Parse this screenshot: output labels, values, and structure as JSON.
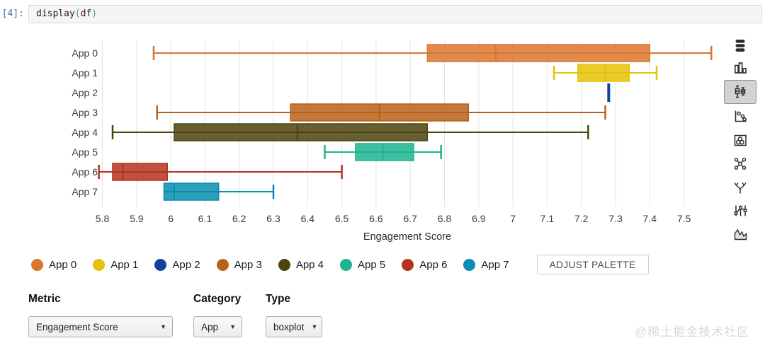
{
  "notebook": {
    "prompt": "[4]:",
    "code_fn": "display",
    "paren_open": "(",
    "code_arg": "df",
    "paren_close": ")"
  },
  "chart_data": {
    "type": "boxplot",
    "orientation": "horizontal",
    "title": "",
    "xlabel": "Engagement Score",
    "categories": [
      "App 0",
      "App 1",
      "App 2",
      "App 3",
      "App 4",
      "App 5",
      "App 6",
      "App 7"
    ],
    "x_tick_values": [
      5.8,
      5.9,
      6,
      6.1,
      6.2,
      6.3,
      6.4,
      6.5,
      6.6,
      6.7,
      6.8,
      6.9,
      7,
      7.1,
      7.2,
      7.3,
      7.4,
      7.5
    ],
    "x_tick_labels": [
      "5.8",
      "5.9",
      "6",
      "6.1",
      "6.2",
      "6.3",
      "6.4",
      "6.5",
      "6.6",
      "6.7",
      "6.8",
      "6.9",
      "7",
      "7.1",
      "7.2",
      "7.3",
      "7.4",
      "7.5"
    ],
    "xlim": [
      5.72,
      7.63
    ],
    "grid": true,
    "legend_position": "bottom",
    "series": [
      {
        "name": "App 0",
        "color": "#DA752E",
        "min": 5.95,
        "q1": 6.75,
        "median": 6.95,
        "q3": 7.4,
        "max": 7.58
      },
      {
        "name": "App 1",
        "color": "#E5C209",
        "min": 7.12,
        "q1": 7.19,
        "median": 7.27,
        "q3": 7.34,
        "max": 7.42
      },
      {
        "name": "App 2",
        "color": "#1441A0",
        "min": 7.28,
        "q1": 7.28,
        "median": 7.28,
        "q3": 7.28,
        "max": 7.28
      },
      {
        "name": "App 3",
        "color": "#B86117",
        "min": 5.96,
        "q1": 6.35,
        "median": 6.61,
        "q3": 6.87,
        "max": 7.27
      },
      {
        "name": "App 4",
        "color": "#4D430C",
        "min": 5.83,
        "q1": 6.01,
        "median": 6.37,
        "q3": 6.75,
        "max": 7.22
      },
      {
        "name": "App 5",
        "color": "#1DB390",
        "min": 6.45,
        "q1": 6.54,
        "median": 6.62,
        "q3": 6.71,
        "max": 6.79
      },
      {
        "name": "App 6",
        "color": "#B3331D",
        "min": 5.79,
        "q1": 5.83,
        "median": 5.86,
        "q3": 5.99,
        "max": 6.5
      },
      {
        "name": "App 7",
        "color": "#088EB2",
        "min": 5.98,
        "q1": 5.98,
        "median": 6.01,
        "q3": 6.14,
        "max": 6.3
      }
    ]
  },
  "legend": {
    "adjust_palette_label": "ADJUST PALETTE"
  },
  "toolbar": {
    "icons": [
      {
        "name": "data-table-icon",
        "selected": false
      },
      {
        "name": "bar-chart-icon",
        "selected": false
      },
      {
        "name": "boxplot-icon",
        "selected": true
      },
      {
        "name": "scatterplot-icon",
        "selected": false
      },
      {
        "name": "hexbin-icon",
        "selected": false
      },
      {
        "name": "network-icon",
        "selected": false
      },
      {
        "name": "hierarchy-icon",
        "selected": false
      },
      {
        "name": "parallel-coordinates-icon",
        "selected": false
      },
      {
        "name": "line-chart-icon",
        "selected": false
      }
    ]
  },
  "controls": {
    "metric": {
      "label": "Metric",
      "value": "Engagement Score"
    },
    "category": {
      "label": "Category",
      "value": "App"
    },
    "type": {
      "label": "Type",
      "value": "boxplot"
    }
  },
  "watermark": "@稀土掘金技术社区"
}
